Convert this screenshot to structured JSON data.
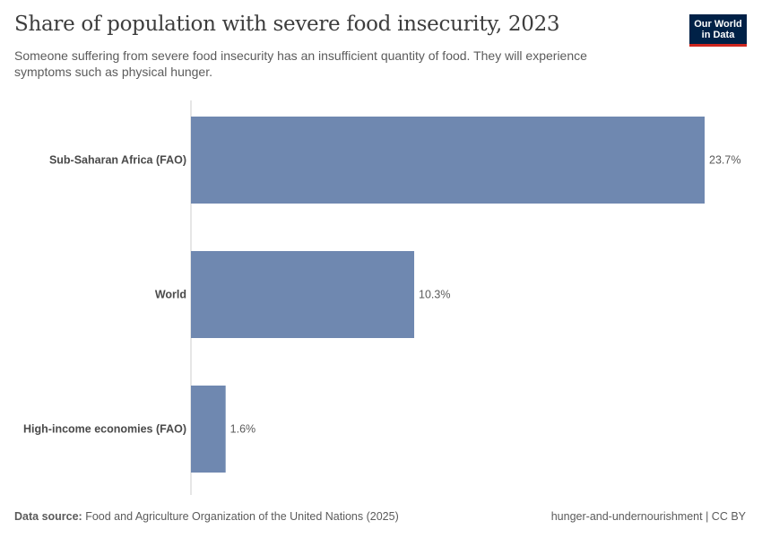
{
  "header": {
    "title": "Share of population with severe food insecurity, 2023",
    "subtitle": "Someone suffering from severe food insecurity has an insufficient quantity of food. They will experience symptoms such as physical hunger.",
    "logo_line1": "Our World",
    "logo_line2": "in Data"
  },
  "footer": {
    "source_label": "Data source:",
    "source_text": "Food and Agriculture Organization of the United Nations (2025)",
    "right_text": "hunger-and-undernourishment | CC BY"
  },
  "colors": {
    "bar": "#6f88b0",
    "axis": "#cccccc",
    "logo_bg": "#002147",
    "logo_accent": "#ce261e"
  },
  "chart_data": {
    "type": "bar",
    "orientation": "horizontal",
    "categories": [
      "Sub-Saharan Africa (FAO)",
      "World",
      "High-income economies (FAO)"
    ],
    "values": [
      23.7,
      10.3,
      1.6
    ],
    "value_labels": [
      "23.7%",
      "10.3%",
      "1.6%"
    ],
    "unit": "%",
    "xlim": [
      0,
      23.7
    ],
    "grid": false,
    "legend": "none"
  }
}
